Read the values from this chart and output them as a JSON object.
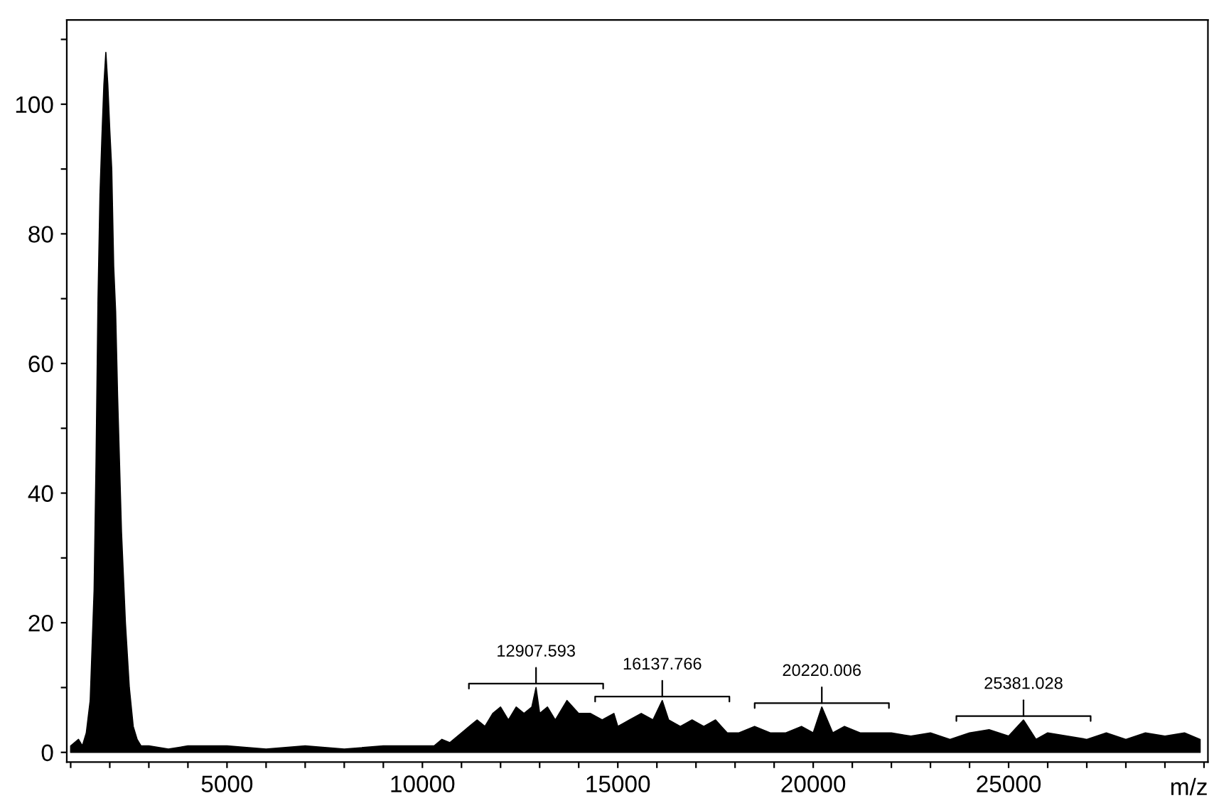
{
  "chart_data": {
    "type": "area",
    "xlabel": "m/z",
    "x": [
      1000,
      1200,
      1300,
      1400,
      1500,
      1600,
      1650,
      1700,
      1750,
      1800,
      1850,
      1900,
      1950,
      2000,
      2050,
      2100,
      2150,
      2200,
      2300,
      2400,
      2500,
      2600,
      2700,
      2800,
      3000,
      3500,
      4000,
      5000,
      6000,
      7000,
      8000,
      9000,
      10000,
      10300,
      10500,
      10700,
      11000,
      11200,
      11400,
      11600,
      11800,
      12000,
      12200,
      12400,
      12600,
      12800,
      12907.593,
      13000,
      13200,
      13400,
      13700,
      14000,
      14300,
      14600,
      14900,
      15000,
      15300,
      15600,
      15900,
      16137.766,
      16300,
      16600,
      16900,
      17200,
      17500,
      17800,
      18100,
      18500,
      18900,
      19300,
      19700,
      20000,
      20220.006,
      20500,
      20800,
      21200,
      21600,
      22000,
      22500,
      23000,
      23500,
      24000,
      24500,
      25000,
      25381.028,
      25700,
      26000,
      26500,
      27000,
      27500,
      28000,
      28500,
      29000,
      29500,
      29900
    ],
    "series": [
      {
        "color": "#000000",
        "values": [
          1,
          2,
          1,
          3,
          8,
          25,
          45,
          70,
          86,
          95,
          103,
          108,
          103,
          96,
          90,
          75,
          68,
          55,
          34,
          20,
          10,
          4,
          2,
          1,
          1,
          0.5,
          1,
          1,
          0.5,
          1,
          0.5,
          1,
          1,
          1,
          2,
          1.5,
          3,
          4,
          5,
          4,
          6,
          7,
          5,
          7,
          6,
          7,
          10,
          6,
          7,
          5,
          8,
          6,
          6,
          5,
          6,
          4,
          5,
          6,
          5,
          8,
          5,
          4,
          5,
          4,
          5,
          3,
          3,
          4,
          3,
          3,
          4,
          3,
          7,
          3,
          4,
          3,
          3,
          3,
          2.5,
          3,
          2,
          3,
          3.5,
          2.5,
          5,
          2,
          3,
          2.5,
          2,
          3,
          2,
          3,
          2.5,
          3,
          2
        ]
      }
    ],
    "xlim": [
      900,
      30100
    ],
    "ylim": [
      -1.5,
      113
    ],
    "xticks": [
      {
        "value": 1000,
        "label": null
      },
      {
        "value": 2000,
        "label": null
      },
      {
        "value": 3000,
        "label": null
      },
      {
        "value": 4000,
        "label": null
      },
      5000,
      {
        "value": 6000,
        "label": null
      },
      {
        "value": 7000,
        "label": null
      },
      {
        "value": 8000,
        "label": null
      },
      {
        "value": 9000,
        "label": null
      },
      10000,
      {
        "value": 11000,
        "label": null
      },
      {
        "value": 12000,
        "label": null
      },
      {
        "value": 13000,
        "label": null
      },
      {
        "value": 14000,
        "label": null
      },
      15000,
      {
        "value": 16000,
        "label": null
      },
      {
        "value": 17000,
        "label": null
      },
      {
        "value": 18000,
        "label": null
      },
      {
        "value": 19000,
        "label": null
      },
      20000,
      {
        "value": 21000,
        "label": null
      },
      {
        "value": 22000,
        "label": null
      },
      {
        "value": 23000,
        "label": null
      },
      {
        "value": 24000,
        "label": null
      },
      25000,
      {
        "value": 26000,
        "label": null
      },
      {
        "value": 27000,
        "label": null
      },
      {
        "value": 28000,
        "label": null
      },
      {
        "value": 29000,
        "label": null
      },
      {
        "value": 30000,
        "label": null
      }
    ],
    "yticks": [
      0,
      {
        "value": 10,
        "label": null
      },
      20,
      {
        "value": 30,
        "label": null
      },
      40,
      {
        "value": 50,
        "label": null
      },
      60,
      {
        "value": 70,
        "label": null
      },
      80,
      {
        "value": 90,
        "label": null
      },
      100,
      {
        "value": 110,
        "label": null
      }
    ],
    "annotations": [
      {
        "text": "12907.593",
        "x": 12907.593,
        "y": 10
      },
      {
        "text": "16137.766",
        "x": 16137.766,
        "y": 8
      },
      {
        "text": "20220.006",
        "x": 20220.006,
        "y": 7
      },
      {
        "text": "25381.028",
        "x": 25381.028,
        "y": 5
      }
    ],
    "grid": false,
    "legend": false
  }
}
